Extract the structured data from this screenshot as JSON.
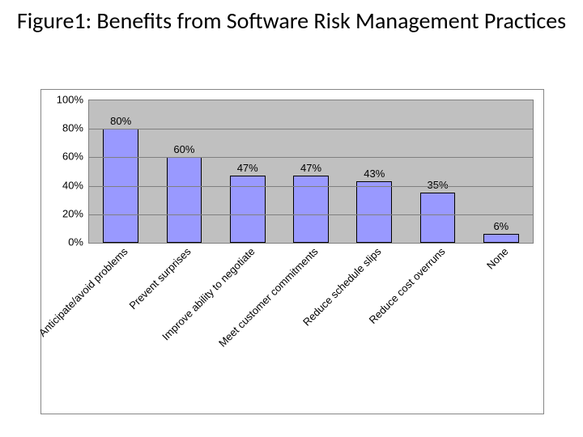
{
  "title": "Figure1: Benefits from Software Risk Management Practices",
  "chart": {
    "type": "bar",
    "background_color": "#c0c0c0",
    "grid_color": "#808080",
    "frame_border_color": "#868686",
    "bar_fill": "#9999ff",
    "bar_border": "#000000",
    "text_color": "#000000",
    "y": {
      "min": 0,
      "max": 100,
      "ticks": [
        0,
        20,
        40,
        60,
        80,
        100
      ],
      "tick_labels": [
        "0%",
        "20%",
        "40%",
        "60%",
        "80%",
        "100%"
      ],
      "label_fontsize": 13
    },
    "categories": [
      "Anticipate/avoid problems",
      "Prevent surprises",
      "Improve ability to negotiate",
      "Meet customer commitments",
      "Reduce schedule slips",
      "Reduce cost overruns",
      "None"
    ],
    "values": [
      80,
      60,
      47,
      47,
      43,
      35,
      6
    ],
    "value_labels": [
      "80%",
      "60%",
      "47%",
      "47%",
      "43%",
      "35%",
      "6%"
    ],
    "value_label_fontsize": 13,
    "category_label_fontsize": 13,
    "category_label_rotation_deg": -45,
    "bar_width_rel": 0.56,
    "title_fontsize": 28
  }
}
